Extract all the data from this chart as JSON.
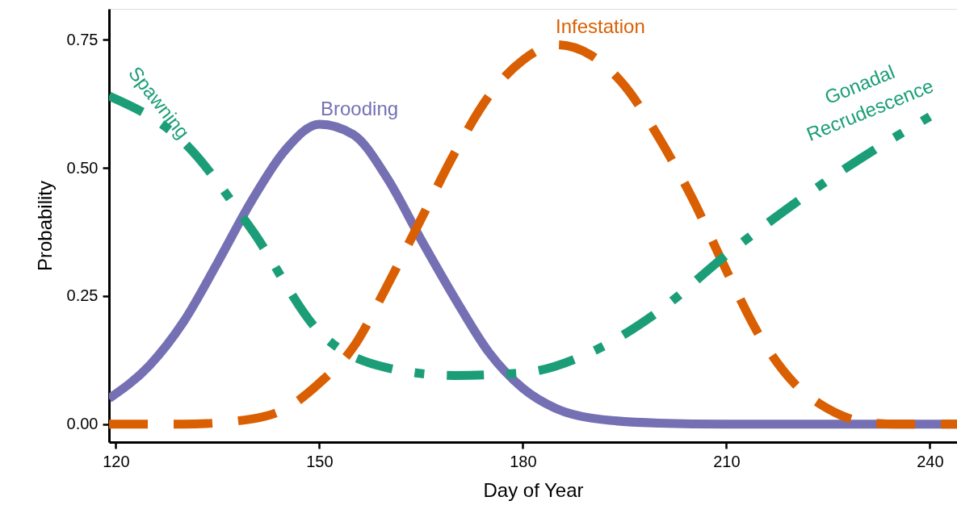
{
  "chart_data": {
    "type": "line",
    "xlabel": "Day of Year",
    "ylabel": "Probability",
    "xlim": [
      119,
      244
    ],
    "ylim": [
      -0.035,
      0.81
    ],
    "xticks": [
      120,
      150,
      180,
      210,
      240
    ],
    "yticks": [
      {
        "value": 0,
        "label": "0.00"
      },
      {
        "value": 0.25,
        "label": "0.25"
      },
      {
        "value": 0.5,
        "label": "0.50"
      },
      {
        "value": 0.75,
        "label": "0.75"
      }
    ],
    "grid": false,
    "marker": "none",
    "series": [
      {
        "name": "Brooding",
        "color": "#7570b3",
        "line_style": "solid",
        "x": [
          119,
          125,
          130,
          135,
          140,
          145,
          150,
          155,
          160,
          165,
          170,
          175,
          180,
          185,
          190,
          200,
          210,
          244
        ],
        "values": [
          0.05,
          0.115,
          0.2,
          0.315,
          0.435,
          0.535,
          0.585,
          0.565,
          0.48,
          0.36,
          0.245,
          0.14,
          0.07,
          0.03,
          0.012,
          0.002,
          0,
          0
        ]
      },
      {
        "name": "Infestation",
        "color": "#d95f02",
        "line_style": "dashed",
        "x": [
          119,
          130,
          140,
          145,
          150,
          155,
          160,
          165,
          170,
          175,
          180,
          185,
          190,
          195,
          200,
          205,
          210,
          215,
          220,
          225,
          230,
          235,
          244
        ],
        "values": [
          0,
          0,
          0.01,
          0.03,
          0.08,
          0.15,
          0.27,
          0.4,
          0.53,
          0.64,
          0.71,
          0.74,
          0.72,
          0.66,
          0.56,
          0.44,
          0.3,
          0.17,
          0.08,
          0.03,
          0.005,
          0,
          0
        ]
      },
      {
        "name": "Spawning",
        "color": "#1b9e77",
        "line_style": "dashdot",
        "x": [
          119,
          130,
          140,
          150,
          160,
          170,
          180,
          190,
          200,
          210,
          220,
          230,
          240
        ],
        "values": [
          0.64,
          0.55,
          0.38,
          0.18,
          0.11,
          0.095,
          0.1,
          0.14,
          0.22,
          0.33,
          0.43,
          0.52,
          0.6
        ]
      }
    ],
    "annotations": [
      "Gonadal Recrudescence"
    ]
  }
}
